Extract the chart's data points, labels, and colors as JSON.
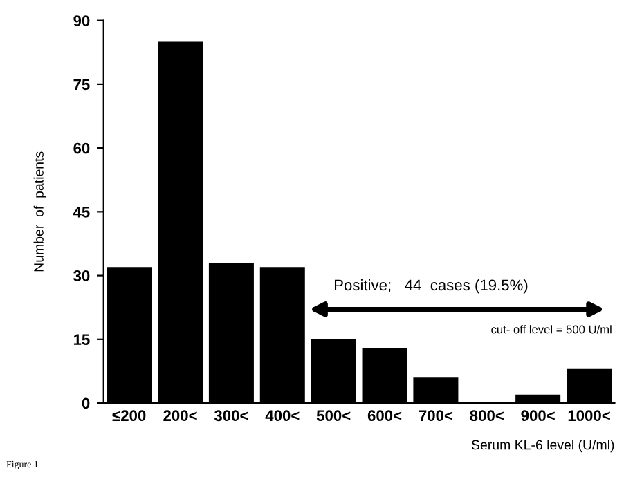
{
  "chart_data": {
    "type": "bar",
    "ylabel": "Number  of  patients",
    "xlabel": "Serum KL-6 level (U/ml)",
    "categories": [
      "≤200",
      "200<",
      "300<",
      "400<",
      "500<",
      "600<",
      "700<",
      "800<",
      "900<",
      "1000<"
    ],
    "values": [
      32,
      85,
      33,
      32,
      15,
      13,
      6,
      0,
      2,
      8
    ],
    "color": "#000000",
    "ylim": [
      0,
      90
    ],
    "yticks": [
      0,
      15,
      30,
      45,
      60,
      75,
      90
    ],
    "grid": false,
    "annotations": [
      "Positive;   44  cases (19.5%)",
      "cut- off level = 500 U/ml",
      "Figure 1"
    ]
  }
}
